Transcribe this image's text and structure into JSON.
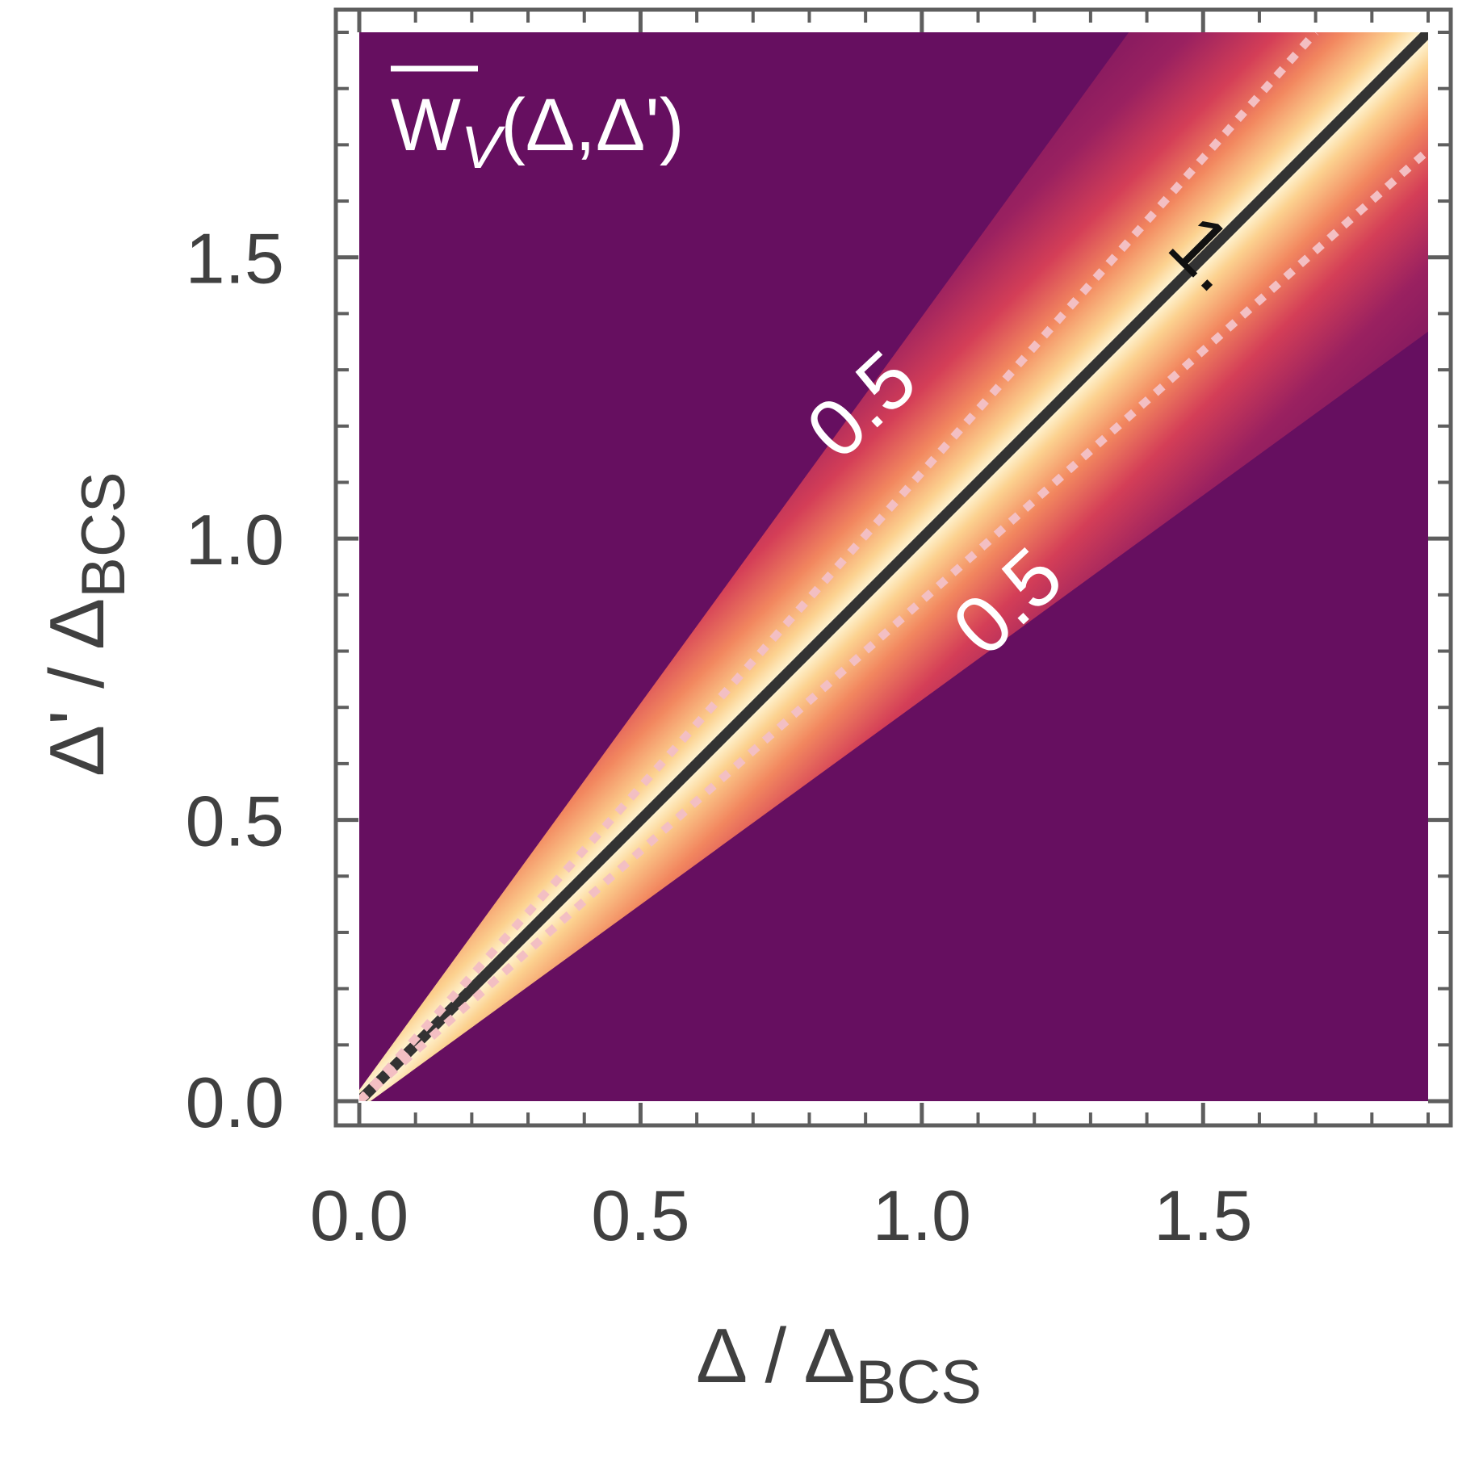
{
  "chart_data": {
    "type": "heatmap",
    "title": {
      "main": "W",
      "subscript": "V",
      "args": "(Δ,Δ')"
    },
    "xlabel": {
      "main": "Δ / Δ",
      "subscript": "BCS"
    },
    "ylabel": {
      "main": "Δ' / Δ",
      "subscript": "BCS"
    },
    "xlim": [
      0.0,
      1.9
    ],
    "ylim": [
      0.0,
      1.9
    ],
    "x_ticks": [
      "0.0",
      "0.5",
      "1.0",
      "1.5"
    ],
    "x_tick_values": [
      0.0,
      0.5,
      1.0,
      1.5
    ],
    "y_ticks": [
      "0.0",
      "0.5",
      "1.0",
      "1.5"
    ],
    "y_tick_values": [
      0.0,
      0.5,
      1.0,
      1.5
    ],
    "minor_tick_step": 0.1,
    "grid": false,
    "colormap": [
      "#660f60",
      "#8a1d63",
      "#c43358",
      "#e8645a",
      "#f7a46b",
      "#fde5a6",
      "#fffbe0"
    ],
    "value_range": [
      0,
      1
    ],
    "contours": [
      {
        "level": "1.",
        "points": [
          [
            0.0,
            0.0
          ],
          [
            1.9,
            1.9
          ]
        ],
        "style": "solid",
        "color": "#333333"
      },
      {
        "level": "0.5",
        "points": [
          [
            0.0,
            0.0
          ],
          [
            1.7,
            1.9
          ]
        ],
        "style": "dotted",
        "color": "#f3bfc3"
      },
      {
        "level": "0.5",
        "points": [
          [
            0.0,
            0.0
          ],
          [
            1.9,
            1.69
          ]
        ],
        "style": "dotted",
        "color": "#f3bfc3"
      }
    ],
    "contour_labels": [
      {
        "text": "0.5",
        "x": 0.9,
        "y": 1.23,
        "angle_deg": -43,
        "color": "#ffffff"
      },
      {
        "text": "0.5",
        "x": 1.16,
        "y": 0.88,
        "angle_deg": -43,
        "color": "#ffffff"
      },
      {
        "text": "1.",
        "x": 1.5,
        "y": 1.5,
        "angle_deg": 45,
        "color": "#111111"
      }
    ]
  }
}
